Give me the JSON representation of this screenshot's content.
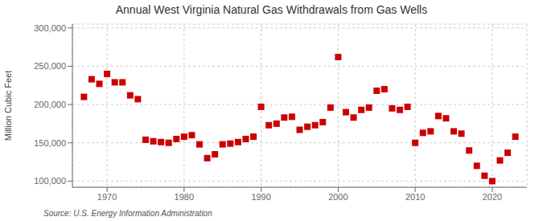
{
  "chart_data": {
    "type": "scatter",
    "title": "Annual West Virginia Natural Gas Withdrawals from Gas Wells",
    "ylabel": "Million Cubic Feet",
    "annotations": [
      "Source: U.S. Energy Information Administration"
    ],
    "x": [
      1967,
      1968,
      1969,
      1970,
      1971,
      1972,
      1973,
      1974,
      1975,
      1976,
      1977,
      1978,
      1979,
      1980,
      1981,
      1982,
      1983,
      1984,
      1985,
      1986,
      1987,
      1988,
      1989,
      1990,
      1991,
      1992,
      1993,
      1994,
      1995,
      1996,
      1997,
      1998,
      1999,
      2000,
      2001,
      2002,
      2003,
      2004,
      2005,
      2006,
      2007,
      2008,
      2009,
      2010,
      2011,
      2012,
      2013,
      2014,
      2015,
      2016,
      2017,
      2018,
      2019,
      2020,
      2021,
      2022,
      2023
    ],
    "values": [
      210000,
      233000,
      227000,
      240000,
      229000,
      229000,
      212000,
      207000,
      154000,
      152000,
      151000,
      150000,
      155000,
      158000,
      160000,
      148000,
      130000,
      135000,
      148000,
      149000,
      151000,
      155000,
      158000,
      197000,
      173000,
      175000,
      183000,
      184000,
      167000,
      171000,
      173000,
      177000,
      196000,
      262000,
      190000,
      183000,
      193000,
      196000,
      218000,
      220000,
      195000,
      193000,
      197000,
      150000,
      163000,
      165000,
      185000,
      182000,
      165000,
      162000,
      140000,
      120000,
      107000,
      100000,
      127000,
      137000,
      158000
    ],
    "color": "#cc0000",
    "marker": "square",
    "xlim": [
      1965.5,
      2024.5
    ],
    "xticks": [
      1970,
      1980,
      1990,
      2000,
      2010,
      2020
    ],
    "ylim": [
      92000,
      305000
    ],
    "yticks": [
      {
        "value": 100000,
        "label": "100,000"
      },
      {
        "value": 150000,
        "label": "150,000"
      },
      {
        "value": 200000,
        "label": "200,000"
      },
      {
        "value": 250000,
        "label": "250,000"
      },
      {
        "value": 300000,
        "label": "300,000"
      }
    ],
    "grid": true
  }
}
